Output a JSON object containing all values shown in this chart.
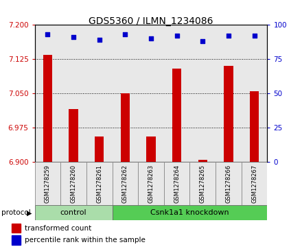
{
  "title": "GDS5360 / ILMN_1234086",
  "samples": [
    "GSM1278259",
    "GSM1278260",
    "GSM1278261",
    "GSM1278262",
    "GSM1278263",
    "GSM1278264",
    "GSM1278265",
    "GSM1278266",
    "GSM1278267"
  ],
  "bar_values": [
    7.135,
    7.015,
    6.955,
    7.05,
    6.955,
    7.105,
    6.905,
    7.11,
    7.055
  ],
  "scatter_values": [
    93,
    91,
    89,
    93,
    90,
    92,
    88,
    92,
    92
  ],
  "ylim_left": [
    6.9,
    7.2
  ],
  "ylim_right": [
    0,
    100
  ],
  "yticks_left": [
    6.9,
    6.975,
    7.05,
    7.125,
    7.2
  ],
  "yticks_right": [
    0,
    25,
    50,
    75,
    100
  ],
  "bar_color": "#cc0000",
  "scatter_color": "#0000cc",
  "plot_bg_color": "#e8e8e8",
  "control_color": "#aaddaa",
  "knockdown_color": "#55cc55",
  "control_label": "control",
  "knockdown_label": "Csnk1a1 knockdown",
  "protocol_label": "protocol",
  "legend_bar_label": "transformed count",
  "legend_scatter_label": "percentile rank within the sample",
  "fig_width": 4.4,
  "fig_height": 3.63,
  "dpi": 100
}
